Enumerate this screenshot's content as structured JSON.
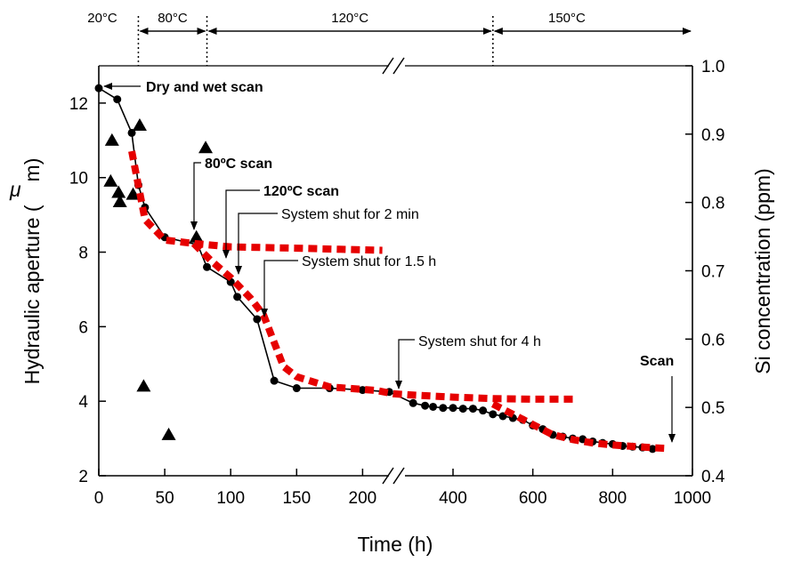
{
  "chart_data": {
    "type": "scatter",
    "xlabel": "Time (h)",
    "ylabel_left": "Hydraulic aperture (",
    "ylabel_unit_symbol": "μ",
    "ylabel_unit_tail": "m)",
    "ylabel_right": "Si concentration (ppm)",
    "broken_x_axis": true,
    "x_segments": [
      {
        "range": [
          0,
          225
        ],
        "ticks": [
          "0",
          "50",
          "100",
          "150",
          "200"
        ],
        "tick_values": [
          0,
          50,
          100,
          150,
          200
        ]
      },
      {
        "range": [
          225,
          1000
        ],
        "ticks": [
          "400",
          "600",
          "800",
          "1000"
        ],
        "tick_values": [
          400,
          600,
          800,
          1000
        ]
      }
    ],
    "ylim_left": [
      2,
      13
    ],
    "yticks_left": [
      "2",
      "4",
      "6",
      "8",
      "10",
      "12"
    ],
    "ylim_right": [
      0.4,
      1.0
    ],
    "yticks_right": [
      "0.4",
      "0.5",
      "0.6",
      "0.7",
      "0.8",
      "0.9",
      "1.0"
    ],
    "temperature_segments": [
      {
        "label": "20°C",
        "x_start": 0,
        "x_end": 30
      },
      {
        "label": "80°C",
        "x_start": 30,
        "x_end": 82
      },
      {
        "label": "120°C",
        "x_start": 82,
        "x_end": 500
      },
      {
        "label": "150°C",
        "x_start": 500,
        "x_end": 1000
      }
    ],
    "series": [
      {
        "marker": "circle-line",
        "axis": "left",
        "color": "#000000",
        "x": [
          0,
          14,
          25,
          30,
          35,
          50,
          75,
          82,
          100,
          105,
          120,
          133,
          150,
          175,
          200,
          240,
          300,
          330,
          350,
          375,
          400,
          425,
          450,
          475,
          500,
          525,
          550,
          575,
          600,
          625,
          650,
          675,
          700,
          725,
          750,
          775,
          800,
          825,
          850,
          875,
          900
        ],
        "y": [
          12.4,
          12.1,
          11.2,
          9.8,
          9.2,
          8.4,
          8.2,
          7.6,
          7.2,
          6.8,
          6.2,
          4.55,
          4.35,
          4.35,
          4.3,
          4.25,
          3.95,
          3.88,
          3.85,
          3.82,
          3.82,
          3.8,
          3.8,
          3.75,
          3.65,
          3.6,
          3.55,
          3.5,
          3.35,
          3.25,
          3.1,
          3.05,
          3.0,
          2.98,
          2.92,
          2.88,
          2.85,
          2.8,
          2.78,
          2.76,
          2.72
        ]
      },
      {
        "marker": "triangle",
        "axis": "left",
        "color": "#000000",
        "x": [
          10,
          9,
          15,
          16,
          26,
          31,
          34,
          53,
          74,
          81
        ],
        "y": [
          11.0,
          9.9,
          9.6,
          9.35,
          9.55,
          11.4,
          4.4,
          3.1,
          8.4,
          10.8
        ]
      },
      {
        "marker": "red-dashed-line",
        "axis": "right",
        "color": "#e60000",
        "x": [
          25,
          35,
          50,
          72,
          100,
          150,
          215
        ],
        "y": [
          0.875,
          0.775,
          0.745,
          0.74,
          0.735,
          0.733,
          0.73
        ]
      },
      {
        "marker": "red-dashed-line",
        "axis": "right",
        "color": "#e60000",
        "x": [
          72,
          85,
          100,
          115,
          125,
          140,
          150,
          175,
          210,
          250,
          300,
          400,
          500,
          600,
          700
        ],
        "y": [
          0.74,
          0.715,
          0.69,
          0.66,
          0.635,
          0.56,
          0.545,
          0.53,
          0.525,
          0.52,
          0.518,
          0.515,
          0.513,
          0.512,
          0.512
        ]
      },
      {
        "marker": "red-dashed-line",
        "axis": "right",
        "color": "#e60000",
        "x": [
          500,
          550,
          600,
          650,
          700,
          750,
          800,
          850,
          900,
          940
        ],
        "y": [
          0.505,
          0.49,
          0.475,
          0.46,
          0.453,
          0.448,
          0.445,
          0.443,
          0.441,
          0.44
        ]
      }
    ],
    "annotations": [
      {
        "text": "Dry and wet scan",
        "bold": true,
        "target_x": 0,
        "target_y": 12.4
      },
      {
        "text": "80ºC scan",
        "bold": true,
        "target_x": 75,
        "target_y": 8.35
      },
      {
        "text": "120ºC scan",
        "bold": true,
        "target_x": 100,
        "target_y": 7.8
      },
      {
        "text": "System shut for 2 min",
        "bold": false,
        "target_x": 105,
        "target_y": 7.0
      },
      {
        "text": "System shut for 1.5 h",
        "bold": false,
        "target_x": 125,
        "target_y": 6.0
      },
      {
        "text": "System shut for 4 h",
        "bold": false,
        "target_x": 300,
        "target_y": 4.2
      },
      {
        "text": "Scan",
        "bold": true,
        "target_x": 940,
        "target_y": 2.8
      }
    ]
  }
}
